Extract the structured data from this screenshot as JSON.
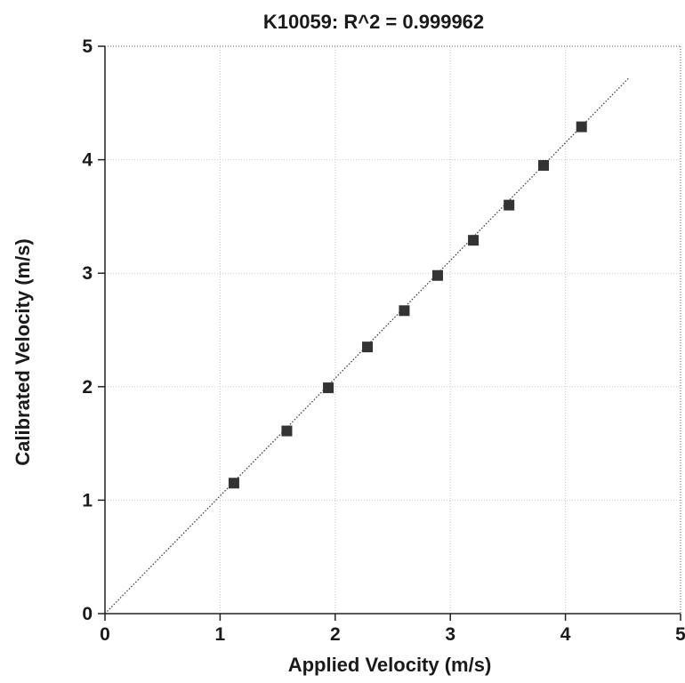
{
  "chart_data": {
    "type": "scatter",
    "title": "K10059: R^2 = 0.999962",
    "xlabel": "Applied Velocity (m/s)",
    "ylabel": "Calibrated Velocity (m/s)",
    "xlim": [
      0,
      5
    ],
    "ylim": [
      0,
      5
    ],
    "x_ticks": [
      "0",
      "1",
      "2",
      "3",
      "4",
      "5"
    ],
    "y_ticks": [
      "0",
      "1",
      "2",
      "3",
      "4",
      "5"
    ],
    "grid": true,
    "legend": "none",
    "series": [
      {
        "marker": "square",
        "x": [
          1.12,
          1.58,
          1.94,
          2.28,
          2.6,
          2.89,
          3.2,
          3.51,
          3.81,
          4.14
        ],
        "y": [
          1.15,
          1.61,
          1.99,
          2.35,
          2.67,
          2.98,
          3.29,
          3.6,
          3.95,
          4.29
        ]
      }
    ],
    "fit_line": {
      "style": "dotted",
      "x": [
        0,
        4.55
      ],
      "y": [
        0,
        4.72
      ]
    },
    "colors": {
      "marker": "#333333",
      "axis": "#222222",
      "grid": "#c8c8c8",
      "fit_line": "#333333"
    }
  }
}
